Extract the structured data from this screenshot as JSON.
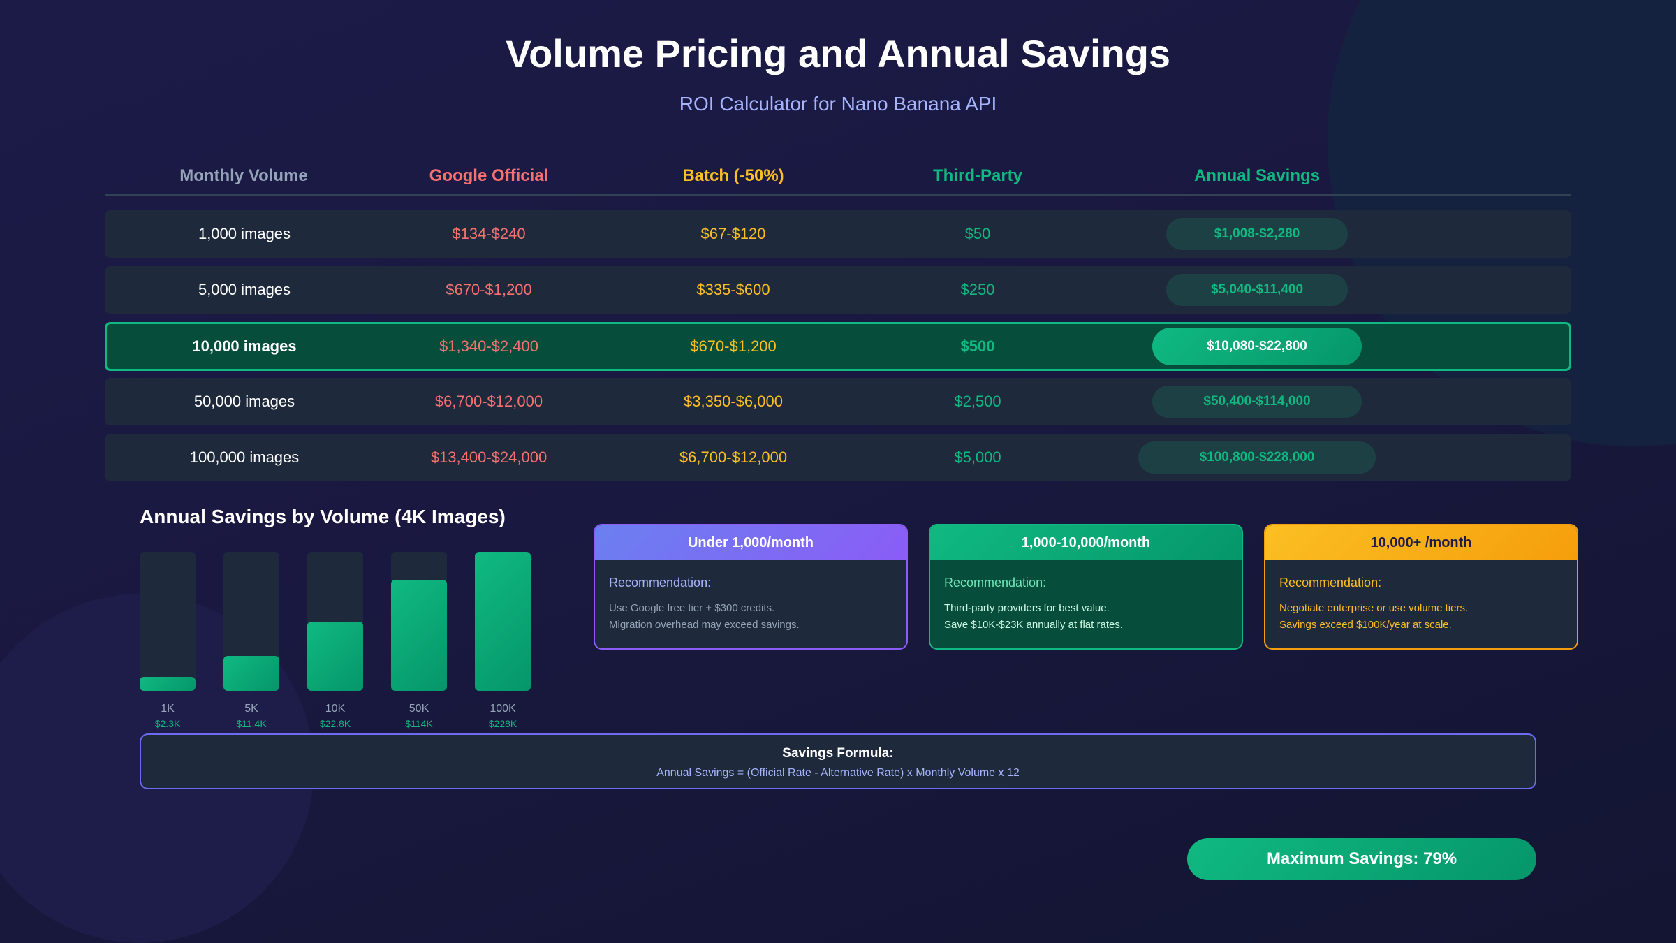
{
  "title": "Volume Pricing and Annual Savings",
  "subtitle": "ROI Calculator for Nano Banana API",
  "colors": {
    "official": "#f87171",
    "batch": "#fbbf24",
    "third": "#10b981",
    "volume": "#94a3b8",
    "savings": "#10b981"
  },
  "table": {
    "headers": [
      "Monthly Volume",
      "Google Official",
      "Batch (-50%)",
      "Third-Party",
      "Annual Savings"
    ],
    "rows": [
      {
        "volume": "1,000 images",
        "official": "$134-$240",
        "batch": "$67-$120",
        "third": "$50",
        "savings": "$1,008-$2,280",
        "highlight": false
      },
      {
        "volume": "5,000 images",
        "official": "$670-$1,200",
        "batch": "$335-$600",
        "third": "$250",
        "savings": "$5,040-$11,400",
        "highlight": false
      },
      {
        "volume": "10,000 images",
        "official": "$1,340-$2,400",
        "batch": "$670-$1,200",
        "third": "$500",
        "savings": "$10,080-$22,800",
        "highlight": true
      },
      {
        "volume": "50,000 images",
        "official": "$6,700-$12,000",
        "batch": "$3,350-$6,000",
        "third": "$2,500",
        "savings": "$50,400-$114,000",
        "highlight": false
      },
      {
        "volume": "100,000 images",
        "official": "$13,400-$24,000",
        "batch": "$6,700-$12,000",
        "third": "$5,000",
        "savings": "$100,800-$228,000",
        "highlight": false
      }
    ]
  },
  "chart_data": {
    "type": "bar",
    "title": "Annual Savings by Volume (4K Images)",
    "categories": [
      "1K",
      "5K",
      "10K",
      "50K",
      "100K"
    ],
    "value_labels": [
      "$2.3K",
      "$11.4K",
      "$22.8K",
      "$114K",
      "$228K"
    ],
    "values": [
      2.3,
      11.4,
      22.8,
      114,
      228
    ],
    "fill_percent": [
      10,
      25,
      50,
      80,
      100
    ]
  },
  "cards": [
    {
      "title": "Under 1,000/month",
      "rec": "Recommendation:",
      "lines": [
        "Use Google free tier + $300 credits.",
        "Migration overhead may exceed savings."
      ]
    },
    {
      "title": "1,000-10,000/month",
      "rec": "Recommendation:",
      "lines": [
        "Third-party providers for best value.",
        "Save $10K-$23K annually at flat rates."
      ]
    },
    {
      "title": "10,000+ /month",
      "rec": "Recommendation:",
      "lines": [
        "Negotiate enterprise or use volume tiers.",
        "Savings exceed $100K/year at scale."
      ]
    }
  ],
  "formula": {
    "title": "Savings Formula:",
    "text": "Annual Savings = (Official Rate - Alternative Rate) x Monthly Volume x 12"
  },
  "max_savings": "Maximum Savings: 79%"
}
